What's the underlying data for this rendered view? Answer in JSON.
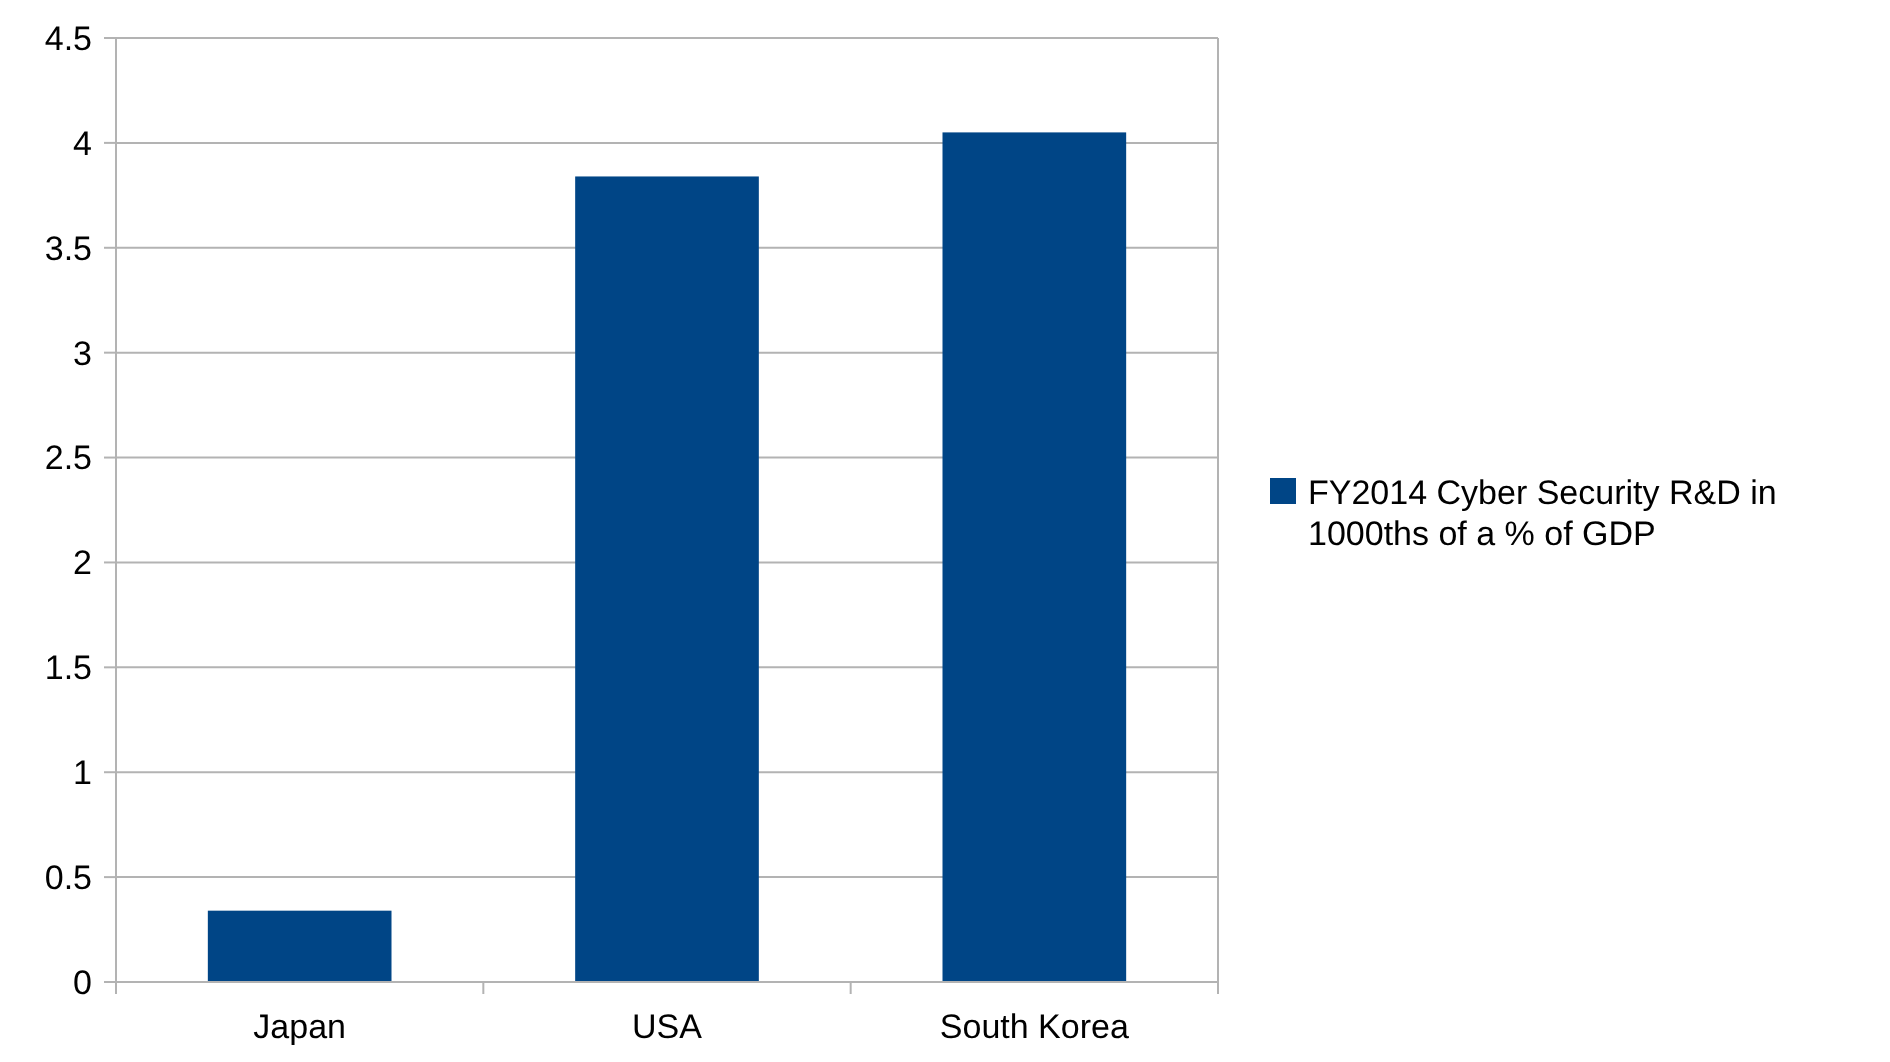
{
  "chart_data": {
    "type": "bar",
    "categories": [
      "Japan",
      "USA",
      "South Korea"
    ],
    "series": [
      {
        "name": "FY2014 Cyber Security R&D in 1000ths of a % of GDP",
        "color": "#004586",
        "values": [
          0.34,
          3.84,
          4.05
        ]
      }
    ],
    "ylim": [
      0,
      4.5
    ],
    "yticks": [
      0,
      0.5,
      1,
      1.5,
      2,
      2.5,
      3,
      3.5,
      4,
      4.5
    ],
    "grid": "y",
    "legend": "right"
  }
}
